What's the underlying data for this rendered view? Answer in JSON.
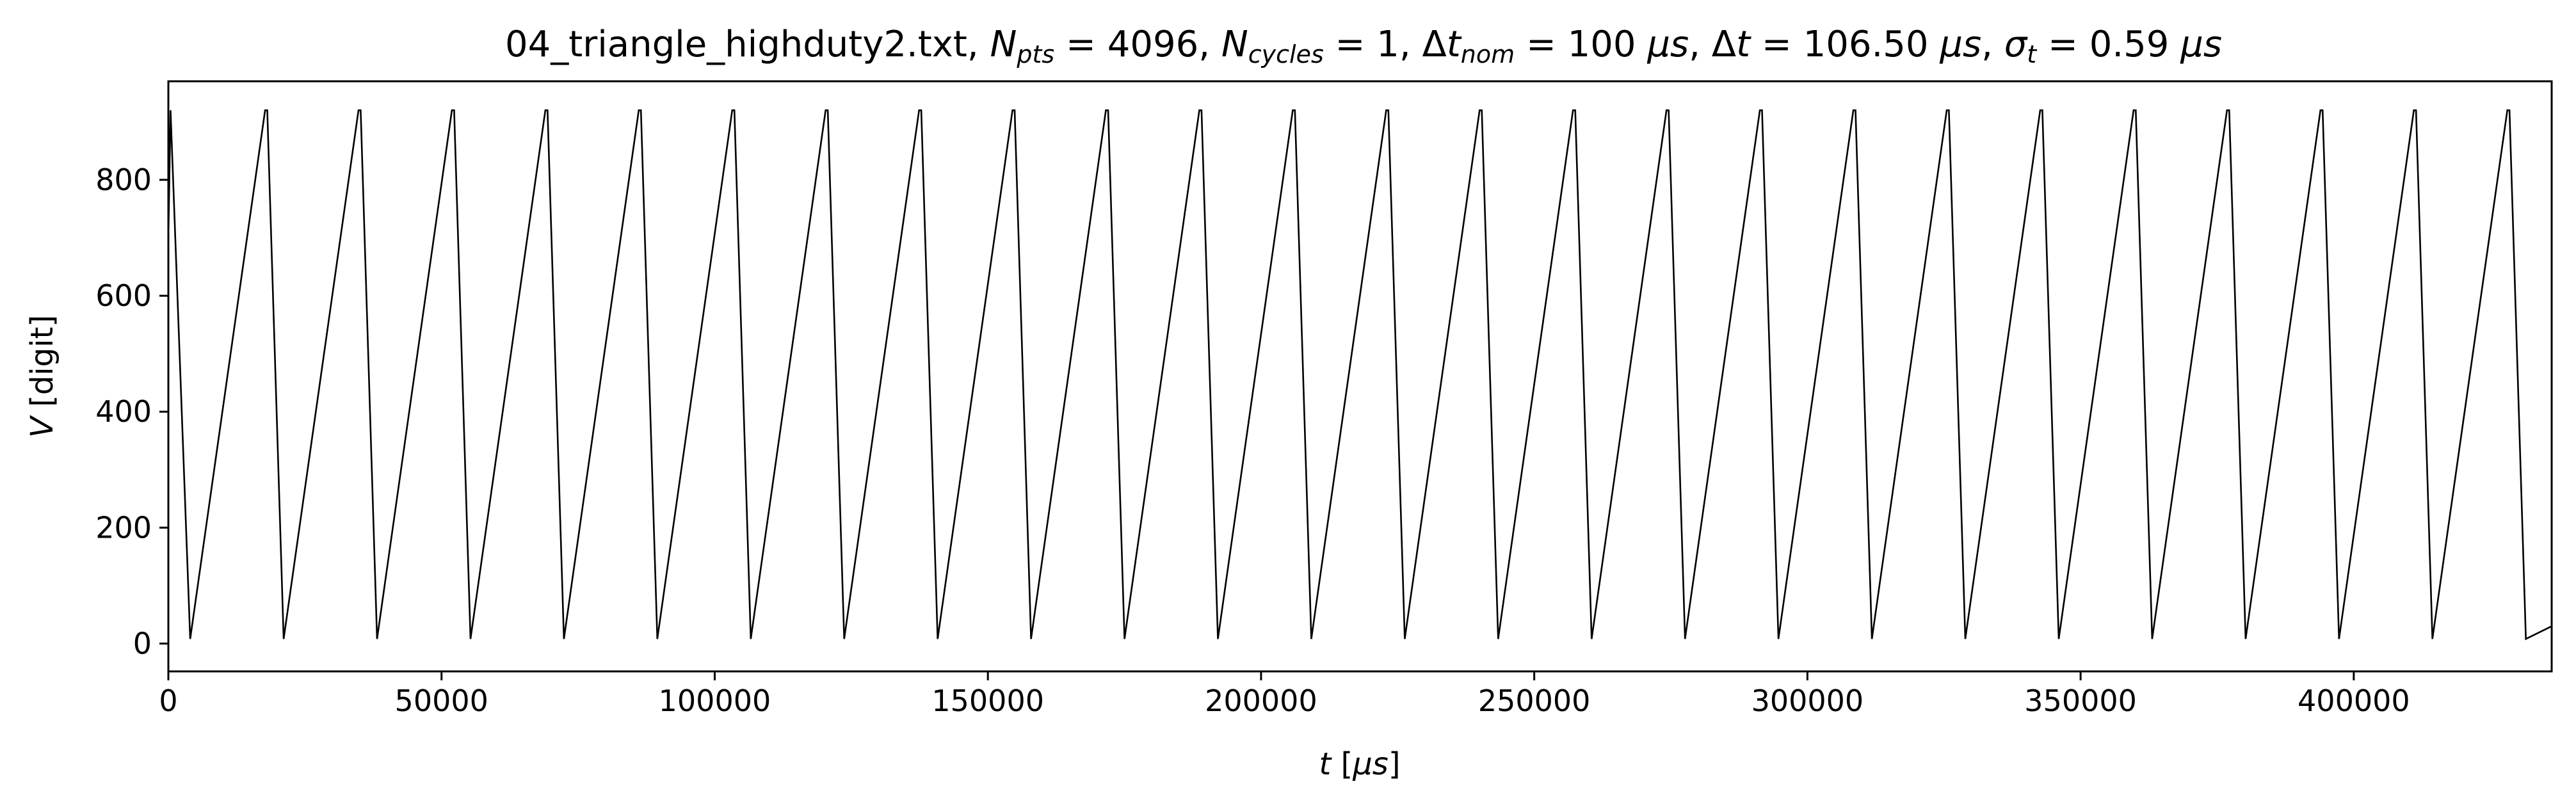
{
  "chart_data": {
    "type": "line",
    "title_parts": {
      "file": "04_triangle_highduty2.txt, ",
      "n_pts_label": "N",
      "n_pts_sub": "pts",
      "n_pts_value": " = 4096, ",
      "n_cycles_label": "N",
      "n_cycles_sub": "cycles",
      "n_cycles_value": " = 1, Δ",
      "dt_nom_label": "t",
      "dt_nom_sub": "nom",
      "dt_nom_value": " = 100 ",
      "mu1": "μs",
      "sep1": ", Δ",
      "dt_label": "t",
      "dt_value": " = 106.50 ",
      "mu2": "μs",
      "sep2": ", ",
      "sigma_label": "σ",
      "sigma_sub": "t",
      "sigma_value": " = 0.59 ",
      "mu3": "μs"
    },
    "xlabel_parts": {
      "var": "t",
      "unit_open": " [",
      "unit": "μs",
      "unit_close": "]"
    },
    "ylabel_parts": {
      "var": "V",
      "unit": " [digit]"
    },
    "xlim": [
      0,
      436224
    ],
    "ylim": [
      -48,
      970
    ],
    "x_ticks": [
      0,
      50000,
      100000,
      150000,
      200000,
      250000,
      300000,
      350000,
      400000
    ],
    "x_tick_labels": [
      "0",
      "50000",
      "100000",
      "150000",
      "200000",
      "250000",
      "300000",
      "350000",
      "400000"
    ],
    "y_ticks": [
      0,
      200,
      400,
      600,
      800
    ],
    "y_tick_labels": [
      "0",
      "200",
      "400",
      "600",
      "800"
    ],
    "grid": false,
    "line_color": "#000000",
    "series": [
      {
        "x": [
          0,
          400,
          4000,
          17700,
          18100,
          21100,
          34800,
          35200,
          38200,
          51900,
          52300,
          55300,
          69000,
          69400,
          72400,
          86100,
          86500,
          89500,
          103200,
          103600,
          106600,
          120300,
          120700,
          123700,
          137400,
          137800,
          140800,
          154500,
          154900,
          157900,
          171600,
          172000,
          175000,
          188700,
          189100,
          192100,
          205800,
          206200,
          209200,
          222900,
          223300,
          226300,
          240000,
          240400,
          243400,
          257100,
          257500,
          260500,
          274200,
          274600,
          277600,
          291300,
          291700,
          294700,
          308400,
          308800,
          311800,
          325500,
          325900,
          328900,
          342600,
          343000,
          346000,
          359700,
          360100,
          363100,
          376800,
          377200,
          380200,
          393900,
          394300,
          397300,
          411000,
          411400,
          414400,
          428100,
          428500,
          431500,
          436224
        ],
        "y": [
          700,
          920,
          8,
          920,
          920,
          8,
          920,
          920,
          8,
          920,
          920,
          8,
          920,
          920,
          8,
          920,
          920,
          8,
          920,
          920,
          8,
          920,
          920,
          8,
          920,
          920,
          8,
          920,
          920,
          8,
          920,
          920,
          8,
          920,
          920,
          8,
          920,
          920,
          8,
          920,
          920,
          8,
          920,
          920,
          8,
          920,
          920,
          8,
          920,
          920,
          8,
          920,
          920,
          8,
          920,
          920,
          8,
          920,
          920,
          8,
          920,
          920,
          8,
          920,
          920,
          8,
          920,
          920,
          8,
          920,
          920,
          8,
          920,
          920,
          8,
          920,
          920,
          8,
          30
        ]
      }
    ]
  }
}
